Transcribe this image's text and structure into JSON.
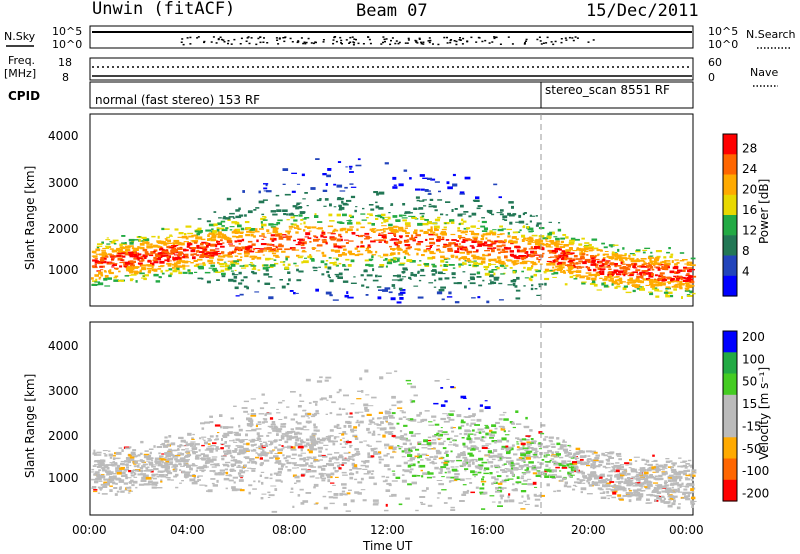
{
  "header": {
    "station": "Unwin (fitACF)",
    "beam": "Beam 07",
    "date": "15/Dec/2011"
  },
  "top_panels": {
    "nsky_label": "N.Sky",
    "nsky_ticks": [
      "10^5",
      "10^0"
    ],
    "nsearch_label": "N.Search",
    "nsearch_ticks": [
      "10^5",
      "10^0"
    ],
    "freq_label": "Freq.",
    "freq_unit": "[MHz]",
    "freq_ticks": [
      "18",
      "8"
    ],
    "nave_label": "Nave",
    "nave_ticks": [
      "60",
      "0"
    ],
    "cpid_label": "CPID",
    "cpid_segments": [
      "normal (fast stereo) 153 RF",
      "stereo_scan 8551 RF"
    ]
  },
  "chart_data": [
    {
      "type": "heatmap",
      "title": "",
      "xlabel": "",
      "ylabel": "Slant Range [km]",
      "yticks": [
        "4000",
        "3000",
        "2000",
        "1000"
      ],
      "ylim": [
        180,
        4600
      ],
      "xlim": [
        0,
        24
      ],
      "colorbar_label": "Power [dB]",
      "colorbar_ticks": [
        "28",
        "24",
        "20",
        "16",
        "12",
        "8",
        "4"
      ],
      "colorbar_colors": [
        "#ff0000",
        "#ff6600",
        "#ffaa00",
        "#e8d800",
        "#22aa44",
        "#227755",
        "#2244bb",
        "#0000ff"
      ]
    },
    {
      "type": "heatmap",
      "title": "",
      "xlabel": "Time UT",
      "ylabel": "Slant Range [km]",
      "yticks": [
        "4000",
        "3000",
        "2000",
        "1000"
      ],
      "xticks": [
        "00:00",
        "04:00",
        "08:00",
        "12:00",
        "16:00",
        "20:00",
        "00:00"
      ],
      "ylim": [
        180,
        4600
      ],
      "xlim": [
        0,
        24
      ],
      "colorbar_label": "Velocity [m s⁻¹]",
      "colorbar_ticks": [
        "200",
        "100",
        "50",
        "15",
        "-15",
        "-50",
        "-100",
        "-200"
      ],
      "colorbar_colors": [
        "#0000ff",
        "#22aa44",
        "#44cc22",
        "#bbbbbb",
        "#bbbbbb",
        "#ffaa00",
        "#ff6600",
        "#ff0000"
      ]
    }
  ]
}
